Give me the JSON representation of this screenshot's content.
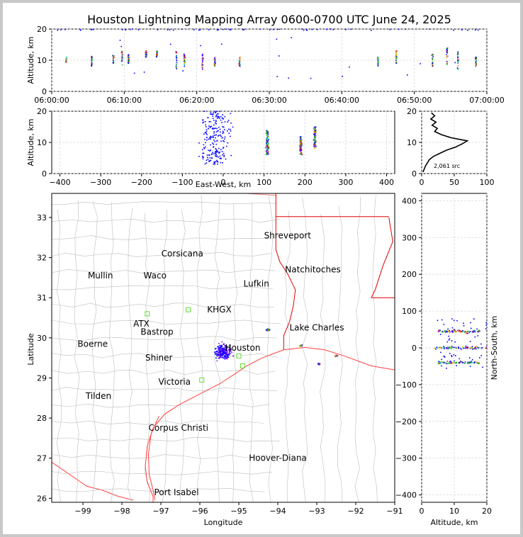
{
  "title": "Houston Lightning Mapping Array 0600-0700 UTC June 24, 2025",
  "colors": {
    "county": "#bdbdbd",
    "state": "#ff0000",
    "coast": "#ff4040",
    "grid": "#d9d9d9",
    "accent_orange": "#f08030",
    "accent_gold": "#e6a817",
    "accent_blue": "#1010dd"
  },
  "chart_data": [
    {
      "type": "scatter",
      "name": "altitude-time",
      "ylabel": "Altitude, km",
      "ylim": [
        0,
        20
      ],
      "yticks": [
        "0",
        "10",
        "20"
      ],
      "xticks": [
        "06:00:00",
        "06:10:00",
        "06:20:00",
        "06:30:00",
        "06:40:00",
        "06:50:00",
        "07:00:00"
      ],
      "xlim_minutes": [
        0,
        60
      ],
      "clusters_minutes": [
        {
          "t": 2.0,
          "zlo": 9,
          "zhi": 11
        },
        {
          "t": 5.5,
          "zlo": 8,
          "zhi": 12
        },
        {
          "t": 8.5,
          "zlo": 9,
          "zhi": 12
        },
        {
          "t": 9.7,
          "zlo": 8,
          "zhi": 13
        },
        {
          "t": 10.6,
          "zlo": 9,
          "zhi": 12
        },
        {
          "t": 13.0,
          "zlo": 11,
          "zhi": 13
        },
        {
          "t": 14.5,
          "zlo": 11,
          "zhi": 13
        },
        {
          "t": 17.2,
          "zlo": 7,
          "zhi": 13
        },
        {
          "t": 18.3,
          "zlo": 8,
          "zhi": 12
        },
        {
          "t": 20.8,
          "zlo": 7,
          "zhi": 12
        },
        {
          "t": 22.5,
          "zlo": 8,
          "zhi": 11
        },
        {
          "t": 25.9,
          "zlo": 8,
          "zhi": 11
        },
        {
          "t": 45.0,
          "zlo": 8,
          "zhi": 11
        },
        {
          "t": 47.5,
          "zlo": 9,
          "zhi": 13
        },
        {
          "t": 52.5,
          "zlo": 8,
          "zhi": 12
        },
        {
          "t": 54.5,
          "zlo": 8,
          "zhi": 14
        },
        {
          "t": 56.0,
          "zlo": 7,
          "zhi": 13
        },
        {
          "t": 58.5,
          "zlo": 8,
          "zhi": 11
        }
      ]
    },
    {
      "type": "scatter",
      "name": "altitude-east-west",
      "xlabel": "East-West, km",
      "ylabel": "Altitude, km",
      "xlim": [
        -420,
        420
      ],
      "ylim": [
        0,
        20
      ],
      "xticks": [
        "−400",
        "−300",
        "−200",
        "−100",
        "0",
        "100",
        "200",
        "300",
        "400"
      ],
      "xtick_values": [
        -400,
        -300,
        -200,
        -100,
        0,
        100,
        200,
        300,
        400
      ],
      "yticks": [
        "0",
        "10",
        "20"
      ],
      "clusters_km": [
        {
          "x": -20,
          "spread": 60,
          "zlo": 3,
          "zhi": 20
        },
        {
          "x": 108,
          "spread": 6,
          "zlo": 6,
          "zhi": 14
        },
        {
          "x": 190,
          "spread": 5,
          "zlo": 6,
          "zhi": 12
        },
        {
          "x": 225,
          "spread": 5,
          "zlo": 8,
          "zhi": 15
        }
      ]
    },
    {
      "type": "line",
      "name": "altitude-histogram",
      "xlim": [
        0,
        100
      ],
      "ylim": [
        0,
        20
      ],
      "xticks": [
        "0",
        "50",
        "100"
      ],
      "yticks": [
        "0",
        "10",
        "20"
      ],
      "annotation": "2,061 src",
      "profile": [
        {
          "n": 2,
          "z": 0.5
        },
        {
          "n": 4,
          "z": 1.5
        },
        {
          "n": 6,
          "z": 2.5
        },
        {
          "n": 9,
          "z": 3.5
        },
        {
          "n": 12,
          "z": 4.5
        },
        {
          "n": 18,
          "z": 5.5
        },
        {
          "n": 28,
          "z": 6.5
        },
        {
          "n": 38,
          "z": 7.5
        },
        {
          "n": 52,
          "z": 8.5
        },
        {
          "n": 62,
          "z": 9.5
        },
        {
          "n": 70,
          "z": 10.5
        },
        {
          "n": 45,
          "z": 11.5
        },
        {
          "n": 30,
          "z": 12.5
        },
        {
          "n": 20,
          "z": 13.5
        },
        {
          "n": 24,
          "z": 14.5
        },
        {
          "n": 16,
          "z": 15.5
        },
        {
          "n": 22,
          "z": 16.5
        },
        {
          "n": 14,
          "z": 17.5
        },
        {
          "n": 20,
          "z": 18.5
        },
        {
          "n": 15,
          "z": 19.5
        }
      ]
    },
    {
      "type": "scatter",
      "name": "plan-view-map",
      "xlabel": "Longitude",
      "ylabel": "Latitude",
      "xlim": [
        -99.8,
        -91
      ],
      "ylim": [
        25.9,
        33.6
      ],
      "xticks": [
        "−99",
        "−98",
        "−97",
        "−96",
        "−95",
        "−94",
        "−93",
        "−92",
        "−91"
      ],
      "xtick_values": [
        -99,
        -98,
        -97,
        -96,
        -95,
        -94,
        -93,
        -92,
        -91
      ],
      "yticks": [
        "26",
        "27",
        "28",
        "29",
        "30",
        "31",
        "32",
        "33"
      ],
      "ytick_values": [
        26,
        27,
        28,
        29,
        30,
        31,
        32,
        33
      ],
      "clusters_deg": [
        {
          "lon": -95.4,
          "lat": 29.65,
          "spread": 0.35
        },
        {
          "lon": -94.25,
          "lat": 30.2,
          "spread": 0.08
        },
        {
          "lon": -93.4,
          "lat": 29.8,
          "spread": 0.05
        },
        {
          "lon": -92.95,
          "lat": 29.35,
          "spread": 0.05
        },
        {
          "lon": -92.5,
          "lat": 29.55,
          "spread": 0.05
        }
      ]
    },
    {
      "type": "scatter",
      "name": "north-south-altitude",
      "xlabel": "Altitude, km",
      "ylabel": "North-South, km",
      "xlim": [
        0,
        20
      ],
      "ylim": [
        -420,
        420
      ],
      "xticks": [
        "0",
        "10",
        "20"
      ],
      "yticks": [
        "−400",
        "−300",
        "−200",
        "−100",
        "0",
        "100",
        "200",
        "300",
        "400"
      ],
      "ytick_values": [
        -400,
        -300,
        -200,
        -100,
        0,
        100,
        200,
        300,
        400
      ],
      "clusters_km": [
        {
          "y": 45,
          "zlo": 5,
          "zhi": 18
        },
        {
          "y": 0,
          "zlo": 4,
          "zhi": 20
        },
        {
          "y": -40,
          "zlo": 5,
          "zhi": 18
        }
      ]
    }
  ],
  "cities": [
    {
      "name": "Shreveport",
      "lon": -93.75,
      "lat": 32.55,
      "color": "#000000"
    },
    {
      "name": "Corsicana",
      "lon": -96.45,
      "lat": 32.1,
      "color": "#000000"
    },
    {
      "name": "Natchitoches",
      "lon": -93.1,
      "lat": 31.7,
      "color": "#000000"
    },
    {
      "name": "Mullin",
      "lon": -98.55,
      "lat": 31.55,
      "color": "#f08030"
    },
    {
      "name": "Waco",
      "lon": -97.15,
      "lat": 31.55,
      "color": "#000000"
    },
    {
      "name": "Lufkin",
      "lon": -94.55,
      "lat": 31.35,
      "color": "#000000"
    },
    {
      "name": "KHGX",
      "lon": -95.5,
      "lat": 30.7,
      "color": "#000000"
    },
    {
      "name": "ATX",
      "lon": -97.5,
      "lat": 30.35,
      "color": "#f08030"
    },
    {
      "name": "Bastrop",
      "lon": -97.1,
      "lat": 30.15,
      "color": "#000000"
    },
    {
      "name": "Lake Charles",
      "lon": -93.0,
      "lat": 30.25,
      "color": "#000000"
    },
    {
      "name": "Boerne",
      "lon": -98.75,
      "lat": 29.85,
      "color": "#000000"
    },
    {
      "name": "Houston",
      "lon": -94.9,
      "lat": 29.75,
      "color": "#e6a817"
    },
    {
      "name": "Shiner",
      "lon": -97.05,
      "lat": 29.5,
      "color": "#000000"
    },
    {
      "name": "Victoria",
      "lon": -96.65,
      "lat": 28.9,
      "color": "#000000"
    },
    {
      "name": "Tilden",
      "lon": -98.6,
      "lat": 28.55,
      "color": "#000000"
    },
    {
      "name": "Corpus Christi",
      "lon": -96.55,
      "lat": 27.75,
      "color": "#000000"
    },
    {
      "name": "Hoover-Diana",
      "lon": -94.0,
      "lat": 27.0,
      "color": "#1010dd"
    },
    {
      "name": "Port Isabel",
      "lon": -96.6,
      "lat": 26.15,
      "color": "#000000"
    }
  ],
  "stations": [
    {
      "lon": -97.35,
      "lat": 30.6
    },
    {
      "lon": -96.3,
      "lat": 30.7
    },
    {
      "lon": -95.95,
      "lat": 28.95
    },
    {
      "lon": -94.9,
      "lat": 29.3
    },
    {
      "lon": -95.0,
      "lat": 29.55
    }
  ]
}
